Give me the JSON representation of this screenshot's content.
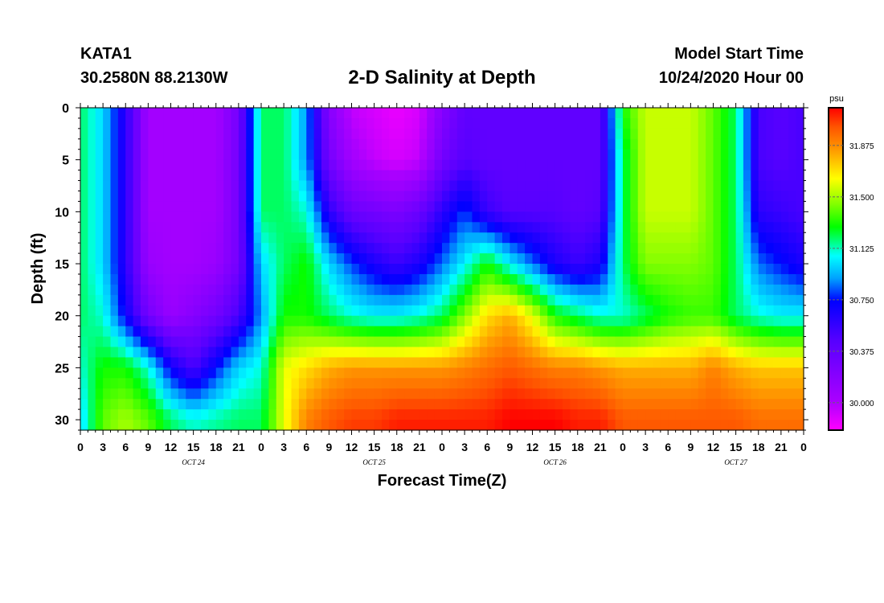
{
  "header": {
    "station": "KATA1",
    "coords": "30.2580N 88.2130W",
    "title": "2-D Salinity at Depth",
    "start_label": "Model Start Time",
    "start_value": "10/24/2020 Hour 00"
  },
  "chart_data": {
    "type": "heatmap",
    "title": "2-D Salinity at Depth",
    "xlabel": "Forecast Time(Z)",
    "ylabel": "Depth (ft)",
    "x_tick_labels": [
      "0",
      "3",
      "6",
      "9",
      "12",
      "15",
      "18",
      "21",
      "0",
      "3",
      "6",
      "9",
      "12",
      "15",
      "18",
      "21",
      "0",
      "3",
      "6",
      "9",
      "12",
      "15",
      "18",
      "21",
      "0",
      "3",
      "6",
      "9",
      "12",
      "15",
      "18",
      "21",
      "0"
    ],
    "date_labels": [
      {
        "label": "OCT 24",
        "hour": 15
      },
      {
        "label": "OCT 25",
        "hour": 39
      },
      {
        "label": "OCT 26",
        "hour": 63
      },
      {
        "label": "OCT 27",
        "hour": 87
      }
    ],
    "xlim": [
      0,
      96
    ],
    "ylim": [
      0,
      31
    ],
    "y_ticks": [
      0,
      5,
      10,
      15,
      20,
      25,
      30
    ],
    "y_inverted": true,
    "colorbar": {
      "unit": "psu",
      "ticks": [
        "30.000",
        "30.375",
        "30.750",
        "31.125",
        "31.500",
        "31.875"
      ],
      "range": [
        29.8,
        32.15
      ]
    },
    "salinity_field": {
      "units": "psu",
      "hours": [
        0,
        3,
        6,
        9,
        12,
        15,
        18,
        21,
        24,
        27,
        30,
        33,
        36,
        39,
        42,
        45,
        48,
        51,
        54,
        57,
        60,
        63,
        66,
        69,
        72,
        75,
        78,
        81,
        84,
        87,
        90,
        93,
        96
      ],
      "depths_ft": [
        0,
        5,
        10,
        15,
        20,
        25,
        30
      ],
      "values": [
        [
          31.2,
          31.2,
          31.2,
          31.2,
          31.2,
          31.1,
          31.0
        ],
        [
          31.0,
          31.0,
          31.0,
          31.0,
          31.1,
          31.3,
          31.4
        ],
        [
          30.6,
          30.6,
          30.6,
          30.6,
          30.7,
          31.3,
          31.5
        ],
        [
          30.05,
          30.05,
          30.05,
          30.1,
          30.3,
          31.1,
          31.4
        ],
        [
          30.05,
          30.05,
          30.05,
          30.05,
          30.1,
          30.7,
          31.2
        ],
        [
          30.05,
          30.05,
          30.05,
          30.05,
          30.2,
          30.5,
          31.1
        ],
        [
          30.05,
          30.05,
          30.05,
          30.1,
          30.3,
          30.75,
          31.15
        ],
        [
          30.3,
          30.3,
          30.3,
          30.3,
          30.5,
          31.0,
          31.2
        ],
        [
          31.2,
          31.2,
          31.2,
          31.0,
          30.9,
          31.1,
          31.2
        ],
        [
          31.2,
          31.2,
          31.2,
          31.2,
          31.3,
          31.6,
          31.6
        ],
        [
          30.9,
          30.9,
          31.1,
          31.3,
          31.3,
          31.7,
          31.9
        ],
        [
          30.2,
          30.3,
          30.6,
          31.0,
          31.2,
          31.8,
          32.0
        ],
        [
          29.95,
          30.05,
          30.35,
          30.8,
          31.1,
          31.85,
          32.05
        ],
        [
          29.9,
          29.95,
          30.3,
          30.65,
          31.05,
          31.85,
          32.05
        ],
        [
          29.85,
          29.9,
          30.25,
          30.55,
          31.05,
          31.85,
          32.1
        ],
        [
          29.9,
          29.95,
          30.35,
          30.65,
          31.1,
          31.85,
          32.1
        ],
        [
          30.2,
          30.3,
          30.6,
          30.85,
          31.2,
          31.85,
          32.1
        ],
        [
          30.4,
          30.45,
          30.8,
          31.05,
          31.45,
          31.9,
          32.1
        ],
        [
          30.4,
          30.4,
          30.55,
          31.3,
          31.7,
          31.95,
          32.1
        ],
        [
          30.4,
          30.4,
          30.45,
          31.05,
          31.8,
          32.0,
          32.15
        ],
        [
          30.4,
          30.4,
          30.45,
          30.85,
          31.6,
          31.95,
          32.15
        ],
        [
          30.4,
          30.4,
          30.45,
          30.65,
          31.3,
          31.9,
          32.15
        ],
        [
          30.4,
          30.4,
          30.4,
          30.55,
          31.2,
          31.9,
          32.1
        ],
        [
          30.4,
          30.4,
          30.45,
          30.65,
          31.1,
          31.85,
          32.1
        ],
        [
          31.3,
          31.2,
          31.2,
          31.2,
          31.1,
          31.8,
          32.0
        ],
        [
          31.55,
          31.55,
          31.55,
          31.45,
          31.2,
          31.8,
          32.0
        ],
        [
          31.55,
          31.55,
          31.55,
          31.45,
          31.3,
          31.8,
          32.0
        ],
        [
          31.55,
          31.55,
          31.55,
          31.45,
          31.35,
          31.8,
          32.0
        ],
        [
          31.4,
          31.4,
          31.4,
          31.4,
          31.35,
          31.9,
          32.0
        ],
        [
          31.2,
          31.2,
          31.2,
          31.2,
          31.2,
          31.8,
          32.0
        ],
        [
          30.5,
          30.5,
          30.6,
          30.85,
          31.1,
          31.75,
          31.95
        ],
        [
          30.45,
          30.45,
          30.55,
          30.75,
          31.05,
          31.75,
          31.95
        ],
        [
          30.5,
          30.5,
          30.5,
          30.65,
          31.05,
          31.75,
          31.95
        ]
      ]
    }
  }
}
